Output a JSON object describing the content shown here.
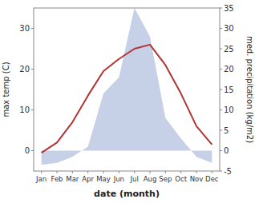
{
  "chart_data": {
    "type": "line",
    "categories": [
      "Jan",
      "Feb",
      "Mar",
      "Apr",
      "May",
      "Jun",
      "Jul",
      "Aug",
      "Sep",
      "Oct",
      "Nov",
      "Dec"
    ],
    "series": [
      {
        "type": "area",
        "axis": "y2",
        "color": "#b8c4e0",
        "values": [
          -3.5,
          -3.0,
          -1.5,
          1.0,
          14.0,
          18.0,
          35.0,
          28.0,
          8.0,
          3.0,
          -1.5,
          -3.0
        ]
      },
      {
        "type": "line",
        "color": "#b03535",
        "values": [
          -0.5,
          2.0,
          7.0,
          13.5,
          19.5,
          22.5,
          25.0,
          26.0,
          21.0,
          14.0,
          6.0,
          1.5
        ]
      }
    ],
    "xlabel": "date (month)",
    "ylabel": "max temp (C)",
    "y2label": "med. precipitation (kg/m2)",
    "ylim": [
      -5,
      35
    ],
    "yticks": [
      0,
      10,
      20,
      30
    ],
    "y2lim": [
      -5,
      35
    ],
    "y2ticks": [
      -5,
      0,
      5,
      10,
      15,
      20,
      25,
      30,
      35
    ],
    "grid": false
  }
}
